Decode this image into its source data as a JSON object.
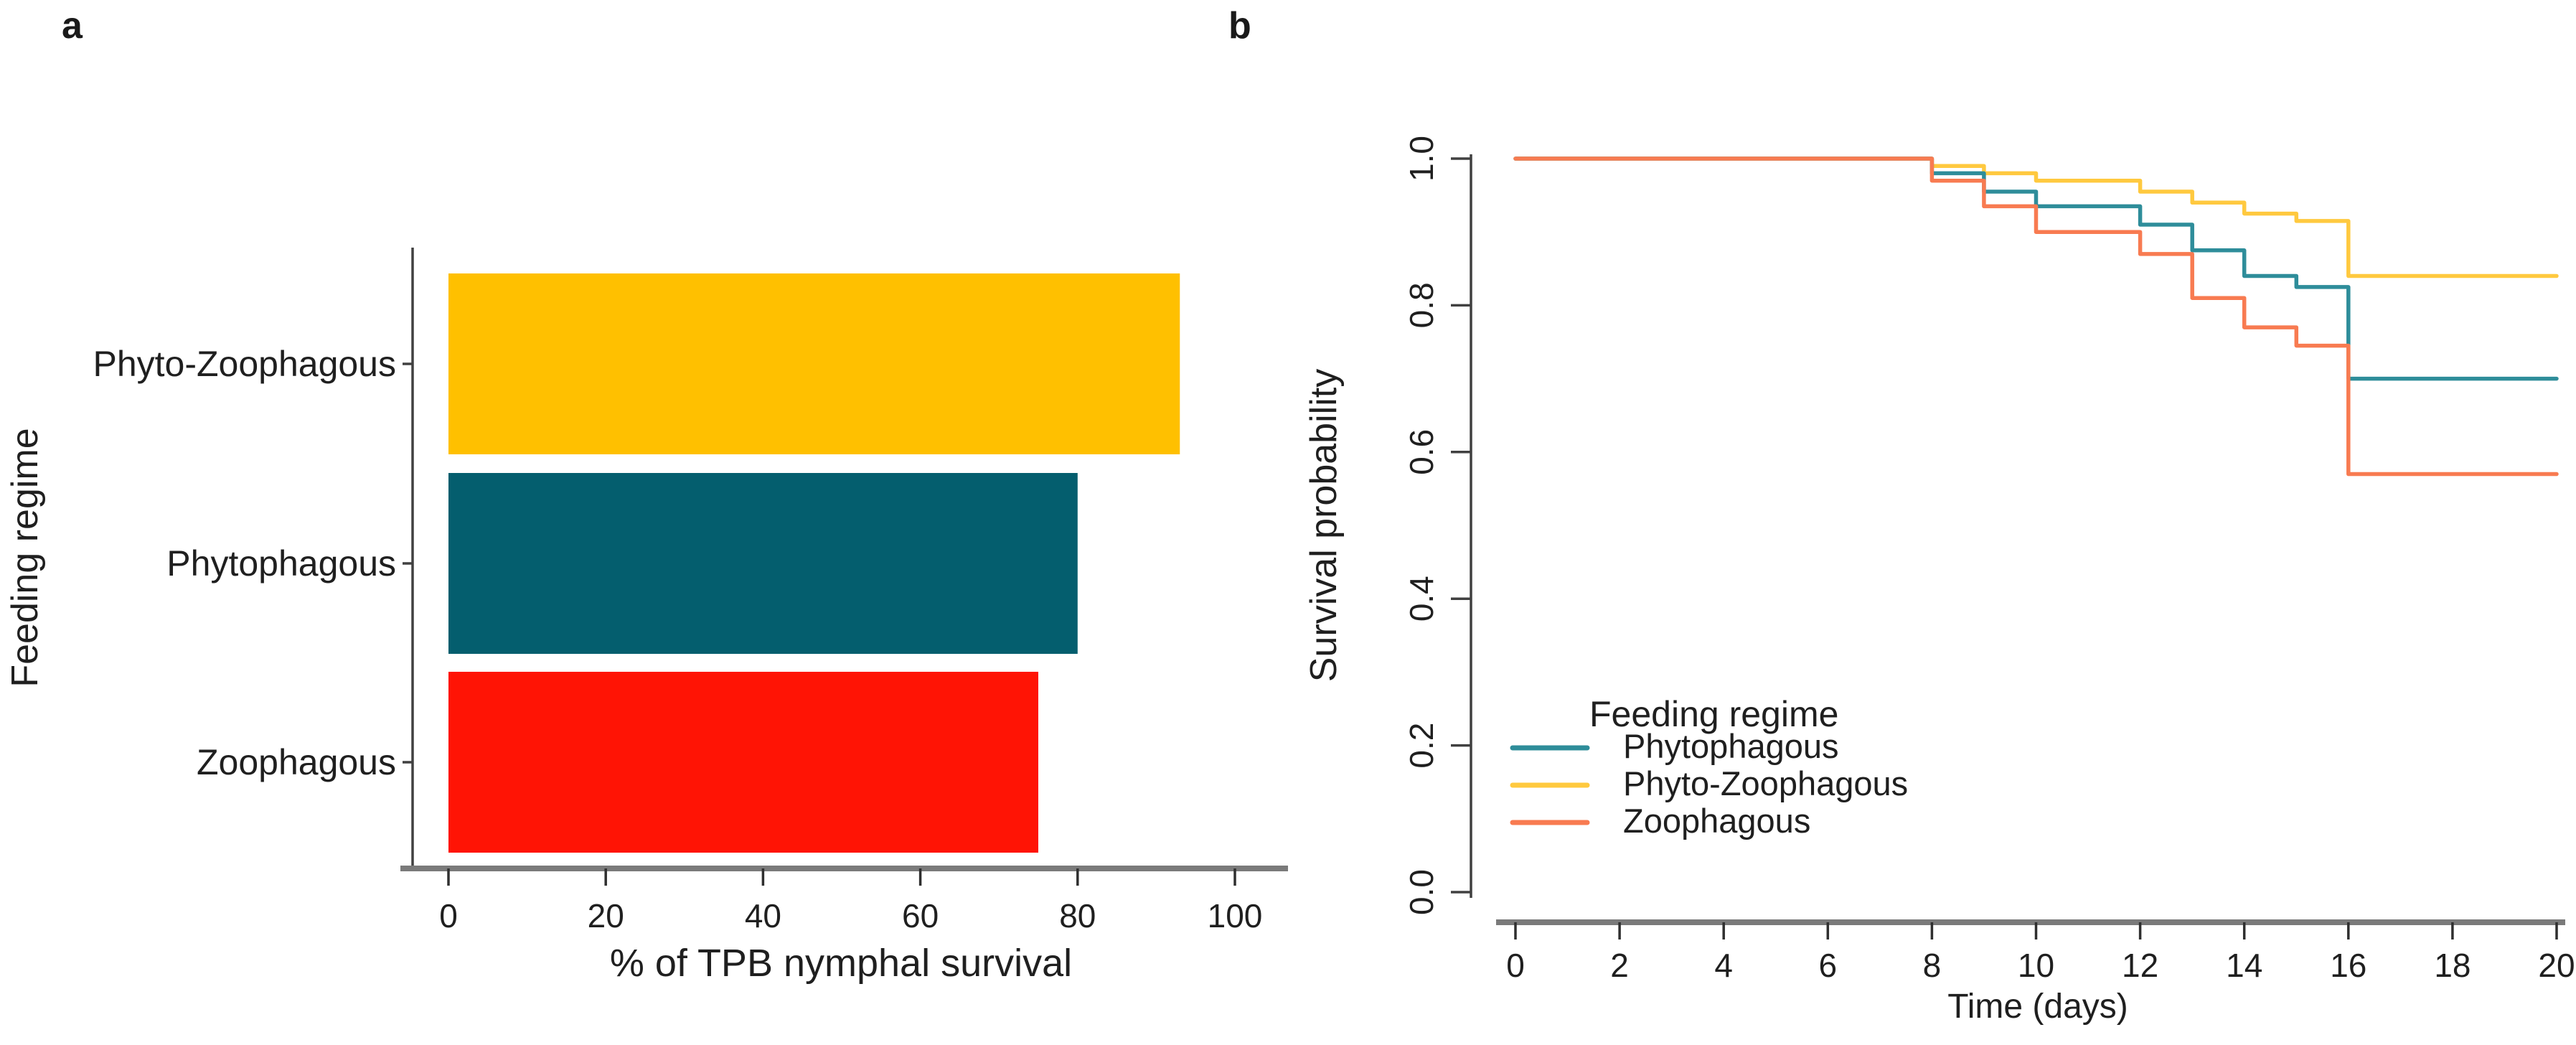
{
  "figure": {
    "background": "#ffffff",
    "panels": {
      "a": {
        "letter": "a"
      },
      "b": {
        "letter": "b"
      }
    }
  },
  "chart_data": [
    {
      "type": "bar",
      "orientation": "horizontal",
      "xlabel": "% of TPB nymphal survival",
      "ylabel": "Feeding regime",
      "categories": [
        "Phyto-Zoophagous",
        "Phytophagous",
        "Zoophagous"
      ],
      "values": [
        93,
        80,
        75
      ],
      "bar_colors": [
        "#FFC000",
        "#045E6E",
        "#FF1405"
      ],
      "xlim": [
        0,
        100
      ],
      "xticks": [
        0,
        20,
        40,
        60,
        80,
        100
      ],
      "xtick_labels": [
        "0",
        "20",
        "40",
        "60",
        "80",
        "100"
      ],
      "grid": false
    },
    {
      "type": "line",
      "subtype": "kaplan-meier-step",
      "xlabel": "Time (days)",
      "ylabel": "Survival probability",
      "xlim": [
        0,
        20
      ],
      "ylim": [
        0.0,
        1.0
      ],
      "xticks": [
        0,
        2,
        4,
        6,
        8,
        10,
        12,
        14,
        16,
        18,
        20
      ],
      "xtick_labels": [
        "0",
        "2",
        "4",
        "6",
        "8",
        "10",
        "12",
        "14",
        "16",
        "18",
        "20"
      ],
      "yticks": [
        0.0,
        0.2,
        0.4,
        0.6,
        0.8,
        1.0
      ],
      "ytick_labels": [
        "0.0",
        "0.2",
        "0.4",
        "0.6",
        "0.8",
        "1.0"
      ],
      "ytick_label_rotation": -90,
      "grid": false,
      "legend": {
        "title": "Feeding regime",
        "position": "inside-bottom-left",
        "entries": [
          {
            "label": "Phytophagous",
            "color": "#2E8D9A"
          },
          {
            "label": "Phyto-Zoophagous",
            "color": "#FFC93F"
          },
          {
            "label": "Zoophagous",
            "color": "#F87B51"
          }
        ]
      },
      "series": [
        {
          "name": "Phyto-Zoophagous",
          "color": "#FFC93F",
          "points": [
            [
              0,
              1.0
            ],
            [
              8,
              1.0
            ],
            [
              8,
              0.99
            ],
            [
              9,
              0.99
            ],
            [
              9,
              0.98
            ],
            [
              10,
              0.98
            ],
            [
              10,
              0.97
            ],
            [
              12,
              0.97
            ],
            [
              12,
              0.955
            ],
            [
              13,
              0.955
            ],
            [
              13,
              0.94
            ],
            [
              14,
              0.94
            ],
            [
              14,
              0.925
            ],
            [
              15,
              0.925
            ],
            [
              15,
              0.915
            ],
            [
              16,
              0.915
            ],
            [
              16,
              0.84
            ],
            [
              20,
              0.84
            ]
          ]
        },
        {
          "name": "Phytophagous",
          "color": "#2E8D9A",
          "points": [
            [
              0,
              1.0
            ],
            [
              8,
              1.0
            ],
            [
              8,
              0.98
            ],
            [
              9,
              0.98
            ],
            [
              9,
              0.955
            ],
            [
              10,
              0.955
            ],
            [
              10,
              0.935
            ],
            [
              12,
              0.935
            ],
            [
              12,
              0.91
            ],
            [
              13,
              0.91
            ],
            [
              13,
              0.875
            ],
            [
              14,
              0.875
            ],
            [
              14,
              0.84
            ],
            [
              15,
              0.84
            ],
            [
              15,
              0.825
            ],
            [
              16,
              0.825
            ],
            [
              16,
              0.7
            ],
            [
              20,
              0.7
            ]
          ]
        },
        {
          "name": "Zoophagous",
          "color": "#F87B51",
          "points": [
            [
              0,
              1.0
            ],
            [
              8,
              1.0
            ],
            [
              8,
              0.97
            ],
            [
              9,
              0.97
            ],
            [
              9,
              0.935
            ],
            [
              10,
              0.935
            ],
            [
              10,
              0.9
            ],
            [
              12,
              0.9
            ],
            [
              12,
              0.87
            ],
            [
              13,
              0.87
            ],
            [
              13,
              0.81
            ],
            [
              14,
              0.81
            ],
            [
              14,
              0.77
            ],
            [
              15,
              0.77
            ],
            [
              15,
              0.745
            ],
            [
              16,
              0.745
            ],
            [
              16,
              0.57
            ],
            [
              20,
              0.57
            ]
          ]
        }
      ]
    }
  ]
}
